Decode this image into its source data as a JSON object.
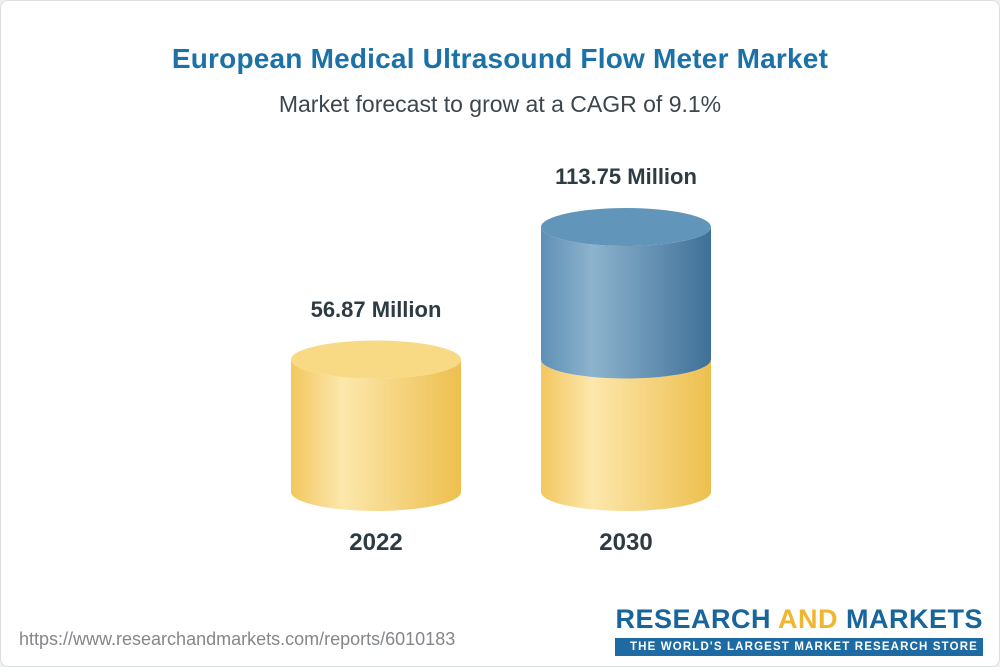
{
  "header": {
    "title": "European Medical Ultrasound Flow Meter Market",
    "subtitle": "Market forecast to grow at a CAGR of 9.1%"
  },
  "chart_data": {
    "type": "bar",
    "bar_style": "3d-cylinder-stacked",
    "title": "European Medical Ultrasound Flow Meter Market",
    "subtitle": "Market forecast to grow at a CAGR of 9.1%",
    "categories": [
      "2022",
      "2030"
    ],
    "values": [
      56.87,
      113.75
    ],
    "value_labels": [
      "56.87 Million",
      "113.75 Million"
    ],
    "unit": "Million",
    "cagr": "9.1%",
    "ylim": [
      0,
      113.75
    ],
    "legend": "none",
    "grid": false,
    "bars": [
      {
        "category": "2022",
        "segments": [
          {
            "value": 56.87,
            "color": "gold"
          }
        ]
      },
      {
        "category": "2030",
        "segments": [
          {
            "value": 56.87,
            "color": "gold"
          },
          {
            "value": 56.88,
            "color": "blue"
          }
        ]
      }
    ],
    "colors": {
      "gold": {
        "body": [
          "#f2c75e",
          "#fce7ac",
          "#edbf4e"
        ],
        "top": "#f8da85"
      },
      "blue": {
        "body": [
          "#5e90b5",
          "#8db3cd",
          "#3e7098"
        ],
        "top": "#6195b9"
      }
    }
  },
  "footer": {
    "url": "https://www.researchandmarkets.com/reports/6010183",
    "logo": {
      "word1": "RESEARCH",
      "word2": "AND",
      "word3": "MARKETS",
      "tagline": "THE WORLD'S LARGEST MARKET RESEARCH STORE"
    }
  }
}
